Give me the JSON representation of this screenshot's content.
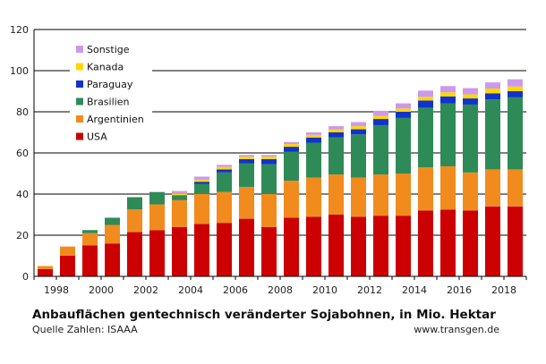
{
  "chart_data": {
    "type": "bar",
    "stacked": true,
    "title": "Anbauflächen gentechnisch veränderter Sojabohnen, in Mio. Hektar",
    "xlabel": "",
    "ylabel": "",
    "ylim": [
      0,
      120
    ],
    "yticks": [
      "0",
      "20",
      "40",
      "60",
      "80",
      "100",
      "120"
    ],
    "xtick_labels": [
      "1998",
      "2000",
      "2002",
      "2004",
      "2006",
      "2008",
      "2010",
      "2012",
      "2014",
      "2016",
      "2018"
    ],
    "grid": true,
    "legend_position": "top-left",
    "categories": [
      "1997",
      "1998",
      "1999",
      "2000",
      "2001",
      "2002",
      "2003",
      "2004",
      "2005",
      "2006",
      "2007",
      "2008",
      "2009",
      "2010",
      "2011",
      "2012",
      "2013",
      "2014",
      "2015",
      "2016",
      "2017",
      "2018"
    ],
    "series": [
      {
        "name": "USA",
        "color": "#cc0000",
        "values": [
          3.5,
          10,
          15,
          16,
          21.5,
          22.5,
          24,
          25.5,
          26,
          28,
          24,
          28.5,
          29,
          30,
          29,
          29.5,
          29.5,
          32,
          32.5,
          32,
          34,
          34
        ]
      },
      {
        "name": "Argentinien",
        "color": "#f28b1e",
        "values": [
          1.5,
          4.5,
          6,
          9,
          11,
          12.5,
          13,
          14.5,
          15,
          15.5,
          16,
          18,
          19,
          19.5,
          19,
          20,
          20.5,
          21,
          21,
          18.5,
          18,
          18
        ]
      },
      {
        "name": "Brasilien",
        "color": "#2e8b57",
        "values": [
          0,
          0,
          1.5,
          3.5,
          6,
          6,
          2.5,
          5,
          9.5,
          11.5,
          14.5,
          14,
          17,
          18,
          21,
          24,
          27,
          29,
          30.5,
          33,
          34,
          35
        ]
      },
      {
        "name": "Paraguay",
        "color": "#1133cc",
        "values": [
          0,
          0,
          0,
          0,
          0,
          0,
          0,
          1,
          1.5,
          2,
          2.5,
          2.5,
          2.5,
          2.5,
          2.5,
          3,
          3,
          3.5,
          3.5,
          3,
          3,
          3
        ]
      },
      {
        "name": "Kanada",
        "color": "#ffd700",
        "values": [
          0,
          0,
          0,
          0,
          0,
          0,
          0.5,
          1,
          1.2,
          1.2,
          1.2,
          1.3,
          1.3,
          1.5,
          1.5,
          1.5,
          1.6,
          1.8,
          2,
          2,
          2.3,
          2.3
        ]
      },
      {
        "name": "Sonstige",
        "color": "#cc99ee",
        "values": [
          0,
          0,
          0,
          0,
          0,
          0,
          1.5,
          1.5,
          1,
          0.8,
          0.8,
          1,
          1.2,
          1.5,
          2,
          2.5,
          2.5,
          3,
          3,
          3,
          3,
          3.5
        ]
      }
    ]
  },
  "footer": {
    "source": "Quelle Zahlen: ISAAA",
    "website": "www.transgen.de"
  }
}
